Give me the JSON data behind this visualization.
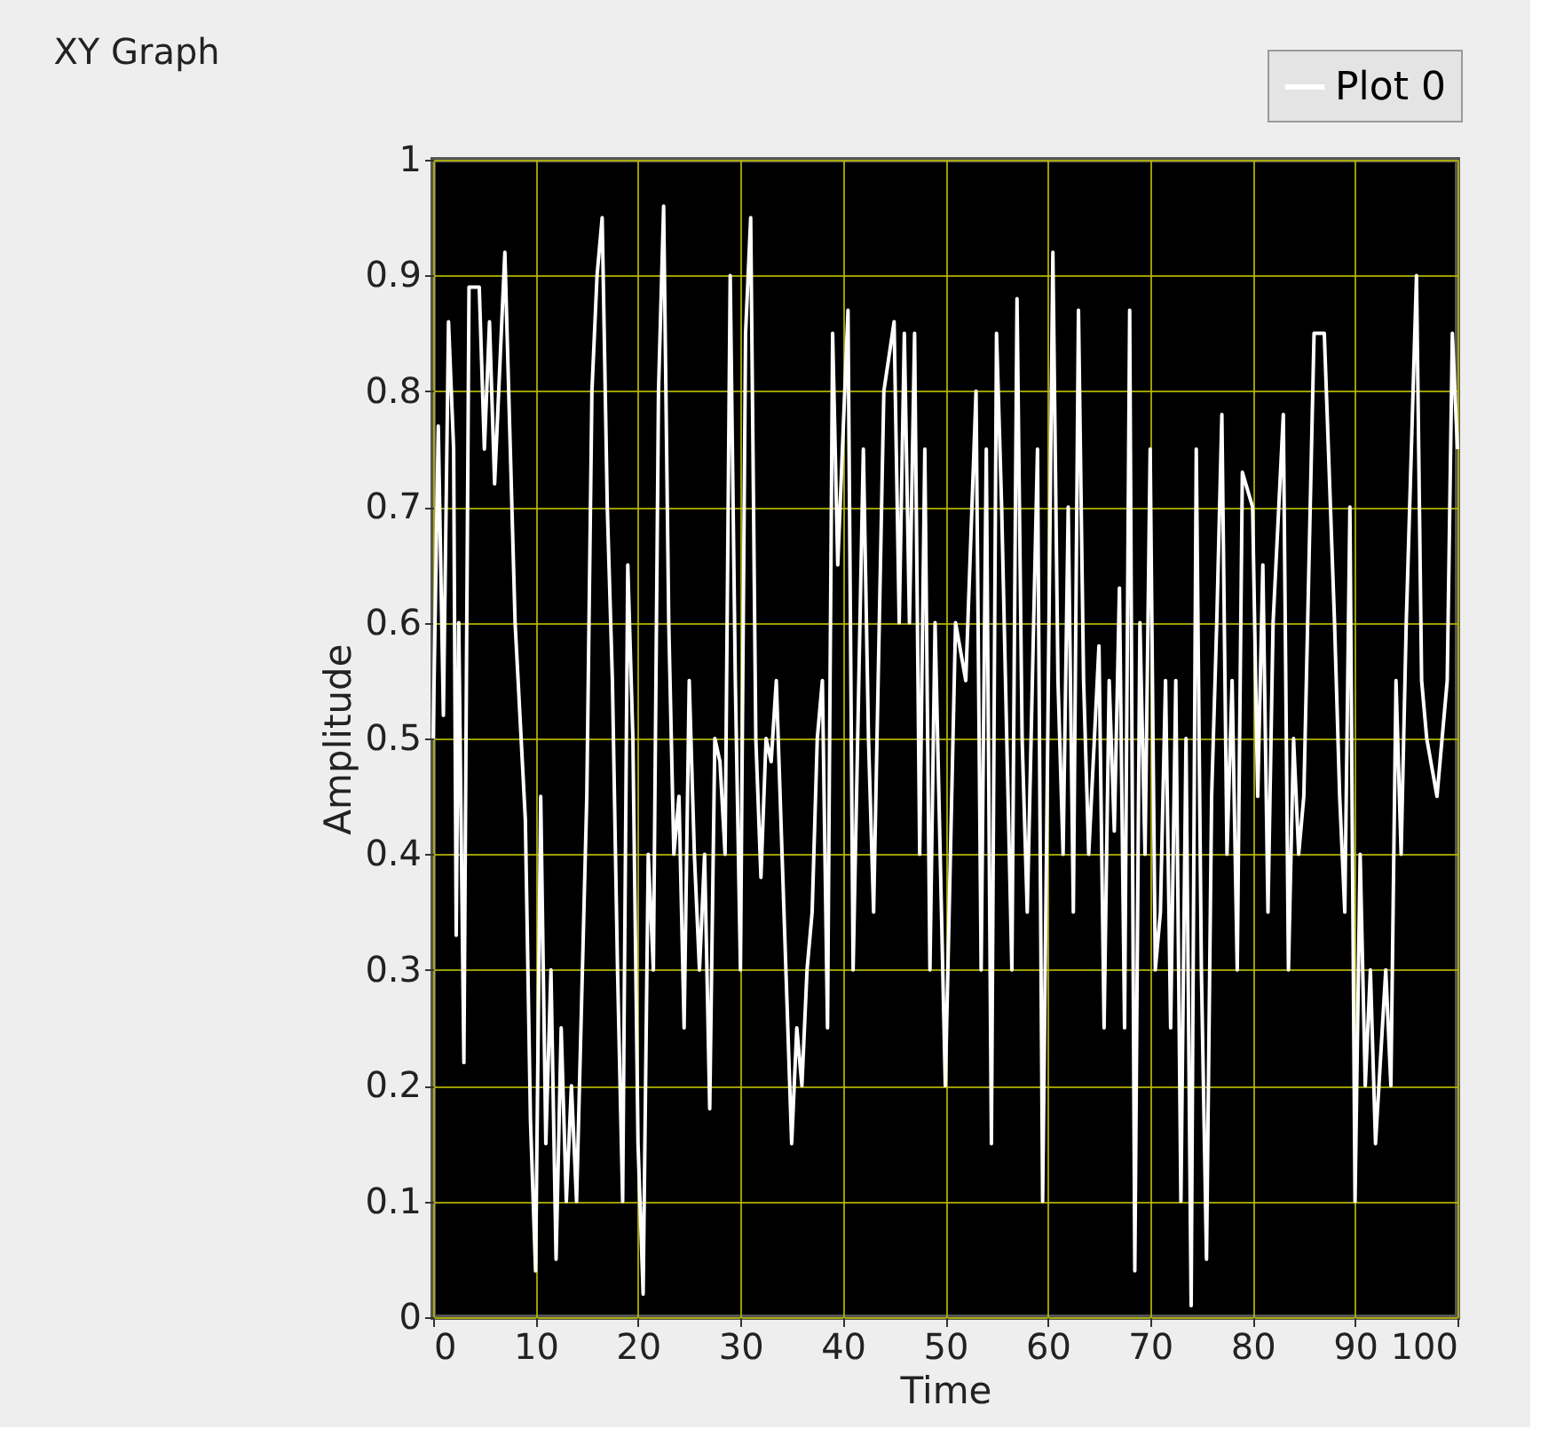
{
  "chart_data": {
    "type": "line",
    "title": "XY Graph",
    "xlabel": "Time",
    "ylabel": "Amplitude",
    "legend": "top right",
    "grid": true,
    "xlim": [
      0,
      100
    ],
    "ylim": [
      0,
      1
    ],
    "xticks": [
      0,
      10,
      20,
      30,
      40,
      50,
      60,
      70,
      80,
      90,
      100
    ],
    "yticks": [
      {
        "value": 0,
        "label": "0"
      },
      0.1,
      0.2,
      0.3,
      0.4,
      0.5,
      0.6,
      0.7,
      0.8,
      0.9,
      {
        "value": 1,
        "label": "1"
      }
    ],
    "series": [
      {
        "name": "Plot 0",
        "color": "#ffffff",
        "x": [
          0,
          0.5,
          1,
          1.5,
          2,
          2.25,
          2.5,
          3,
          3.5,
          4.5,
          5,
          5.5,
          6,
          7,
          8,
          9,
          9.5,
          10,
          10.5,
          11,
          11.5,
          12,
          12.5,
          13,
          13.5,
          14,
          15,
          15.5,
          16,
          16.5,
          17,
          17.5,
          18,
          18.5,
          19,
          19.5,
          20,
          20.5,
          21,
          21.5,
          22,
          22.5,
          23,
          23.5,
          24,
          24.5,
          25,
          25.5,
          26,
          26.5,
          27,
          27.5,
          28,
          28.5,
          29,
          29.5,
          30,
          30.5,
          31,
          31.5,
          32,
          32.5,
          33,
          33.5,
          35,
          35.5,
          36,
          36.5,
          37,
          37.5,
          38,
          38.5,
          39,
          39.5,
          40.5,
          41,
          42,
          42.5,
          43,
          44,
          45,
          45.5,
          46,
          46.5,
          47,
          47.5,
          48,
          48.5,
          49,
          50,
          50.5,
          51,
          52,
          53,
          53.5,
          54,
          54.5,
          55,
          55.5,
          56,
          56.5,
          57,
          57.5,
          58,
          59,
          59.5,
          60,
          60.5,
          61,
          61.5,
          62,
          62.5,
          63,
          63.5,
          64,
          65,
          65.5,
          66,
          66.5,
          67,
          67.5,
          68,
          68.5,
          69,
          69.5,
          70,
          70.5,
          71,
          71.5,
          72,
          72.5,
          73,
          73.5,
          74,
          74.5,
          75,
          75.5,
          76,
          76.5,
          77,
          77.5,
          78,
          78.5,
          79,
          80,
          80.5,
          81,
          81.5,
          82,
          83,
          83.5,
          84,
          84.5,
          85,
          86,
          87,
          88,
          88.5,
          89,
          89.5,
          90,
          90.5,
          91,
          91.5,
          92,
          93,
          93.5,
          94,
          94.5,
          95,
          96,
          96.5,
          97,
          98,
          99,
          99.5,
          100
        ],
        "values": [
          0.5,
          0.77,
          0.52,
          0.86,
          0.75,
          0.33,
          0.6,
          0.22,
          0.89,
          0.89,
          0.75,
          0.86,
          0.72,
          0.92,
          0.6,
          0.43,
          0.17,
          0.04,
          0.45,
          0.15,
          0.3,
          0.05,
          0.25,
          0.1,
          0.2,
          0.1,
          0.45,
          0.8,
          0.9,
          0.95,
          0.7,
          0.55,
          0.3,
          0.1,
          0.65,
          0.5,
          0.15,
          0.02,
          0.4,
          0.3,
          0.8,
          0.96,
          0.6,
          0.4,
          0.45,
          0.25,
          0.55,
          0.4,
          0.3,
          0.4,
          0.18,
          0.5,
          0.48,
          0.4,
          0.9,
          0.55,
          0.3,
          0.85,
          0.95,
          0.5,
          0.38,
          0.5,
          0.48,
          0.55,
          0.15,
          0.25,
          0.2,
          0.3,
          0.35,
          0.5,
          0.55,
          0.25,
          0.85,
          0.65,
          0.87,
          0.3,
          0.75,
          0.5,
          0.35,
          0.8,
          0.86,
          0.6,
          0.85,
          0.6,
          0.85,
          0.4,
          0.75,
          0.3,
          0.6,
          0.2,
          0.4,
          0.6,
          0.55,
          0.8,
          0.3,
          0.75,
          0.15,
          0.85,
          0.7,
          0.5,
          0.3,
          0.88,
          0.5,
          0.35,
          0.75,
          0.1,
          0.5,
          0.92,
          0.55,
          0.4,
          0.7,
          0.35,
          0.87,
          0.55,
          0.4,
          0.58,
          0.25,
          0.55,
          0.42,
          0.63,
          0.25,
          0.87,
          0.04,
          0.6,
          0.4,
          0.75,
          0.3,
          0.35,
          0.55,
          0.25,
          0.55,
          0.1,
          0.5,
          0.01,
          0.75,
          0.3,
          0.05,
          0.45,
          0.6,
          0.78,
          0.4,
          0.55,
          0.3,
          0.73,
          0.7,
          0.45,
          0.65,
          0.35,
          0.6,
          0.78,
          0.3,
          0.5,
          0.4,
          0.45,
          0.85,
          0.85,
          0.6,
          0.45,
          0.35,
          0.7,
          0.1,
          0.4,
          0.2,
          0.3,
          0.15,
          0.3,
          0.2,
          0.55,
          0.4,
          0.6,
          0.9,
          0.55,
          0.5,
          0.45,
          0.55,
          0.85,
          0.75
        ]
      }
    ]
  }
}
